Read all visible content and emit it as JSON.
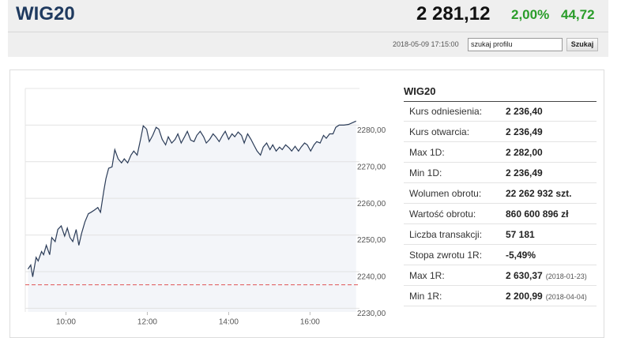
{
  "header": {
    "title": "WIG20",
    "price": "2 281,12",
    "change_pct": "2,00%",
    "change": "44,72",
    "timestamp": "2018-05-09 17:15:00",
    "search_placeholder": "szukaj profilu",
    "search_button": "Szukaj"
  },
  "chart_data": {
    "type": "line",
    "color": "#2b3c58",
    "area_color": "#f3f5f9",
    "x": [
      544,
      548,
      551,
      556,
      559,
      564,
      567,
      571,
      576,
      579,
      584,
      588,
      593,
      598,
      602,
      606,
      610,
      615,
      619,
      623,
      628,
      633,
      637,
      642,
      647,
      651,
      656,
      659,
      663,
      668,
      672,
      677,
      682,
      686,
      691,
      696,
      700,
      705,
      710,
      714,
      719,
      723,
      728,
      733,
      737,
      742,
      747,
      751,
      756,
      761,
      765,
      770,
      775,
      779,
      784,
      789,
      793,
      798,
      803,
      807,
      812,
      817,
      821,
      826,
      831,
      835,
      840,
      845,
      849,
      854,
      859,
      863,
      868,
      873,
      877,
      882,
      887,
      891,
      896,
      901,
      905,
      910,
      915,
      919,
      924,
      929,
      933,
      938,
      943,
      947,
      952,
      956,
      961,
      966,
      970,
      975,
      980,
      984,
      989,
      994,
      998,
      1003,
      1010,
      1017,
      1028
    ],
    "values": [
      2240.7,
      2241.8,
      2238.6,
      2243.9,
      2242.9,
      2245.5,
      2244.6,
      2247.2,
      2244.6,
      2249.3,
      2248.2,
      2251.5,
      2252.5,
      2249.7,
      2251.9,
      2249.3,
      2248.2,
      2251.5,
      2247.2,
      2250.4,
      2253.6,
      2255.8,
      2256.2,
      2256.8,
      2257.5,
      2256.2,
      2262.2,
      2265.4,
      2268.2,
      2268.6,
      2273.3,
      2270.8,
      2269.7,
      2270.8,
      2269.7,
      2271.8,
      2272.9,
      2271.8,
      2276.1,
      2279.8,
      2278.9,
      2275.5,
      2277.2,
      2279.4,
      2278.9,
      2276.1,
      2274.6,
      2276.8,
      2275.1,
      2276.1,
      2277.6,
      2275.1,
      2276.8,
      2278.3,
      2275.9,
      2275.5,
      2277.2,
      2278.3,
      2276.8,
      2275.1,
      2276.1,
      2277.6,
      2276.8,
      2275.5,
      2277.2,
      2278.3,
      2276.1,
      2277.6,
      2276.8,
      2278.1,
      2277.2,
      2275.1,
      2277.6,
      2276.1,
      2274.6,
      2272.9,
      2271.8,
      2274.0,
      2275.1,
      2273.3,
      2274.6,
      2272.9,
      2274.0,
      2273.3,
      2274.6,
      2273.8,
      2272.9,
      2274.2,
      2272.9,
      2274.0,
      2275.1,
      2274.6,
      2272.9,
      2274.6,
      2275.5,
      2275.1,
      2277.2,
      2276.4,
      2277.6,
      2277.6,
      2279.4,
      2280.0,
      2280.0,
      2280.2,
      2281.1
    ],
    "reference_line": {
      "value": 2236.4,
      "color": "#e05555"
    },
    "xlim": [
      540,
      1033
    ],
    "ylim": [
      2229,
      2290
    ],
    "xticks": [
      {
        "value": 600,
        "label": "10:00"
      },
      {
        "value": 720,
        "label": "12:00"
      },
      {
        "value": 840,
        "label": "14:00"
      },
      {
        "value": 960,
        "label": "16:00"
      }
    ],
    "yticks": [
      {
        "value": 2230,
        "label": "2230,00"
      },
      {
        "value": 2240,
        "label": "2240,00"
      },
      {
        "value": 2250,
        "label": "2250,00"
      },
      {
        "value": 2260,
        "label": "2260,00"
      },
      {
        "value": 2270,
        "label": "2270,00"
      },
      {
        "value": 2280,
        "label": "2280,00"
      }
    ],
    "grid": true
  },
  "table": {
    "title": "WIG20",
    "rows": [
      {
        "label": "Kurs odniesienia:",
        "value": "2 236,40"
      },
      {
        "label": "Kurs otwarcia:",
        "value": "2 236,49"
      },
      {
        "label": "Max 1D:",
        "value": "2 282,00"
      },
      {
        "label": "Min 1D:",
        "value": "2 236,49"
      },
      {
        "label": "Wolumen obrotu:",
        "value": "22 262 932 szt."
      },
      {
        "label": "Wartość obrotu:",
        "value": "860 600 896 zł"
      },
      {
        "label": "Liczba transakcji:",
        "value": "57 181"
      },
      {
        "label": "Stopa zwrotu 1R:",
        "value": "-5,49%"
      },
      {
        "label": "Max 1R:",
        "value": "2 630,37",
        "date": "(2018-01-23)"
      },
      {
        "label": "Min 1R:",
        "value": "2 200,99",
        "date": "(2018-04-04)"
      }
    ]
  }
}
